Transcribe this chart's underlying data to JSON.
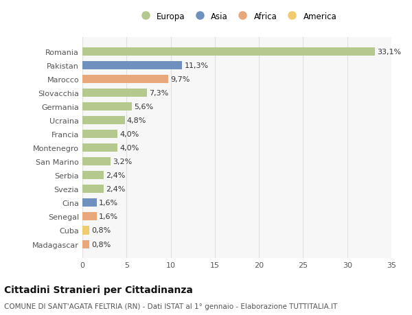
{
  "countries": [
    "Romania",
    "Pakistan",
    "Marocco",
    "Slovacchia",
    "Germania",
    "Ucraina",
    "Francia",
    "Montenegro",
    "San Marino",
    "Serbia",
    "Svezia",
    "Cina",
    "Senegal",
    "Cuba",
    "Madagascar"
  ],
  "values": [
    33.1,
    11.3,
    9.7,
    7.3,
    5.6,
    4.8,
    4.0,
    4.0,
    3.2,
    2.4,
    2.4,
    1.6,
    1.6,
    0.8,
    0.8
  ],
  "labels": [
    "33,1%",
    "11,3%",
    "9,7%",
    "7,3%",
    "5,6%",
    "4,8%",
    "4,0%",
    "4,0%",
    "3,2%",
    "2,4%",
    "2,4%",
    "1,6%",
    "1,6%",
    "0,8%",
    "0,8%"
  ],
  "continents": [
    "Europa",
    "Asia",
    "Africa",
    "Europa",
    "Europa",
    "Europa",
    "Europa",
    "Europa",
    "Europa",
    "Europa",
    "Europa",
    "Asia",
    "Africa",
    "America",
    "Africa"
  ],
  "colors": {
    "Europa": "#b5c98e",
    "Asia": "#7090bf",
    "Africa": "#e8a87c",
    "America": "#f0cc6e"
  },
  "legend_order": [
    "Europa",
    "Asia",
    "Africa",
    "America"
  ],
  "title": "Cittadini Stranieri per Cittadinanza",
  "subtitle": "COMUNE DI SANT'AGATA FELTRIA (RN) - Dati ISTAT al 1° gennaio - Elaborazione TUTTITALIA.IT",
  "xlim": [
    0,
    35
  ],
  "xticks": [
    0,
    5,
    10,
    15,
    20,
    25,
    30,
    35
  ],
  "plot_bg": "#f7f7f7",
  "fig_bg": "#ffffff",
  "grid_color": "#e0e0e0",
  "bar_height": 0.6,
  "title_fontsize": 10,
  "subtitle_fontsize": 7.5,
  "tick_fontsize": 8,
  "label_fontsize": 8,
  "legend_fontsize": 8.5
}
